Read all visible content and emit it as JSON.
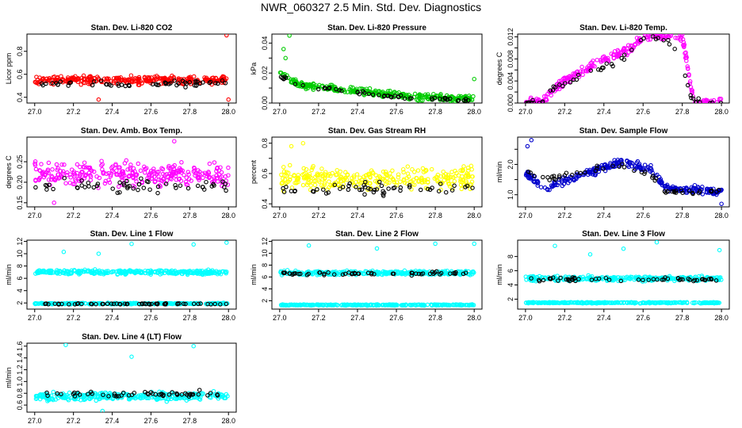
{
  "title": "NWR_060327  2.5 Min. Std. Dev. Diagnostics",
  "colors": {
    "red": "#ff0000",
    "green": "#00cc00",
    "magenta": "#ff00ff",
    "yellow": "#ffff00",
    "blue": "#0000cc",
    "cyan": "#00ffff",
    "black": "#000000"
  },
  "chart_data": [
    {
      "type": "scatter",
      "title": "Stan. Dev. Li-820 CO2",
      "ylabel": "Licor ppm",
      "xlim": [
        27.0,
        28.0
      ],
      "ylim": [
        0.35,
        0.95
      ],
      "xticks": [
        "27.0",
        "27.2",
        "27.4",
        "27.6",
        "27.8",
        "28.0"
      ],
      "yticks": [
        0.4,
        0.6,
        0.8
      ],
      "ytick_labels": [
        "0.4",
        "0.6",
        "0.8"
      ],
      "series": [
        {
          "name": "all",
          "color": "red",
          "level": 0.55,
          "spread": 0.05,
          "x_range": [
            27.0,
            28.0
          ]
        },
        {
          "name": "selected",
          "color": "black",
          "level": 0.52,
          "spread": 0.04,
          "x_range": [
            27.0,
            28.0
          ]
        }
      ],
      "outliers": [
        {
          "x": 27.99,
          "y": 0.94
        },
        {
          "x": 28.0,
          "y": 0.38
        },
        {
          "x": 27.33,
          "y": 0.38
        }
      ]
    },
    {
      "type": "scatter",
      "title": "Stan. Dev. Li-820 Pressure",
      "ylabel": "kPa",
      "xlim": [
        27.0,
        28.0
      ],
      "ylim": [
        0.0,
        0.046
      ],
      "xticks": [
        "27.0",
        "27.2",
        "27.4",
        "27.6",
        "27.8",
        "28.0"
      ],
      "yticks": [
        0.0,
        0.01,
        0.02,
        0.03,
        0.04
      ],
      "ytick_labels": [
        "0.00",
        "",
        "0.02",
        "",
        "0.04"
      ],
      "series": [
        {
          "name": "all",
          "color": "green",
          "profile": [
            [
              27.0,
              0.02
            ],
            [
              27.1,
              0.012
            ],
            [
              27.4,
              0.008
            ],
            [
              27.7,
              0.004
            ],
            [
              28.0,
              0.003
            ]
          ],
          "spread": 0.003,
          "x_range": [
            27.0,
            28.0
          ]
        },
        {
          "name": "selected",
          "color": "black",
          "profile": [
            [
              27.0,
              0.018
            ],
            [
              27.1,
              0.011
            ],
            [
              27.4,
              0.007
            ],
            [
              27.7,
              0.003
            ],
            [
              28.0,
              0.002
            ]
          ],
          "spread": 0.002,
          "x_range": [
            27.0,
            28.0
          ]
        }
      ],
      "outliers": [
        {
          "x": 27.05,
          "y": 0.045
        },
        {
          "x": 27.02,
          "y": 0.036
        },
        {
          "x": 27.03,
          "y": 0.03
        },
        {
          "x": 28.0,
          "y": 0.016
        }
      ]
    },
    {
      "type": "scatter",
      "title": "Stan. Dev. Li-820 Temp.",
      "ylabel": "degrees C",
      "xlim": [
        27.0,
        28.0
      ],
      "ylim": [
        0.0,
        0.0125
      ],
      "xticks": [
        "27.0",
        "27.2",
        "27.4",
        "27.6",
        "27.8",
        "28.0"
      ],
      "yticks": [
        0.0,
        0.002,
        0.004,
        0.006,
        0.008,
        0.01,
        0.012
      ],
      "ytick_labels": [
        "0.000",
        "",
        "0.004",
        "",
        "0.008",
        "",
        "0.012"
      ],
      "series": [
        {
          "name": "all",
          "color": "magenta",
          "profile": [
            [
              27.0,
              0.0
            ],
            [
              27.09,
              0.0
            ],
            [
              27.1,
              0.001
            ],
            [
              27.2,
              0.004
            ],
            [
              27.4,
              0.008
            ],
            [
              27.55,
              0.01
            ],
            [
              27.6,
              0.0125
            ],
            [
              27.8,
              0.012
            ],
            [
              27.85,
              0.002
            ],
            [
              27.87,
              0.0
            ],
            [
              28.0,
              0.0
            ]
          ],
          "spread": 0.0012,
          "x_range": [
            27.0,
            28.0
          ]
        },
        {
          "name": "selected",
          "color": "black",
          "profile": [
            [
              27.0,
              0.0
            ],
            [
              27.09,
              0.0
            ],
            [
              27.15,
              0.003
            ],
            [
              27.3,
              0.005
            ],
            [
              27.5,
              0.008
            ],
            [
              27.6,
              0.012
            ],
            [
              27.75,
              0.011
            ],
            [
              27.85,
              0.001
            ],
            [
              27.87,
              0.0
            ],
            [
              28.0,
              0.0
            ]
          ],
          "spread": 0.001,
          "x_range": [
            27.0,
            28.0
          ]
        }
      ],
      "outliers": []
    },
    {
      "type": "scatter",
      "title": "Stan. Dev. Amb. Box Temp.",
      "ylabel": "degrees C",
      "xlim": [
        27.0,
        28.0
      ],
      "ylim": [
        0.14,
        0.31
      ],
      "xticks": [
        "27.0",
        "27.2",
        "27.4",
        "27.6",
        "27.8",
        "28.0"
      ],
      "yticks": [
        0.15,
        0.2,
        0.25
      ],
      "ytick_labels": [
        "0.15",
        "0.20",
        "0.25"
      ],
      "series": [
        {
          "name": "all",
          "color": "magenta",
          "level": 0.22,
          "spread": 0.04,
          "x_range": [
            27.0,
            28.0
          ]
        },
        {
          "name": "selected",
          "color": "black",
          "level": 0.19,
          "spread": 0.025,
          "x_range": [
            27.0,
            28.0
          ]
        }
      ],
      "outliers": [
        {
          "x": 27.72,
          "y": 0.3
        },
        {
          "x": 27.1,
          "y": 0.15
        }
      ]
    },
    {
      "type": "scatter",
      "title": "Stan. Dev. Gas Stream RH",
      "ylabel": "percent",
      "xlim": [
        27.0,
        28.0
      ],
      "ylim": [
        0.38,
        0.84
      ],
      "xticks": [
        "27.0",
        "27.2",
        "27.4",
        "27.6",
        "27.8",
        "28.0"
      ],
      "yticks": [
        0.4,
        0.5,
        0.6,
        0.7,
        0.8
      ],
      "ytick_labels": [
        "0.4",
        "",
        "0.6",
        "",
        "0.8"
      ],
      "series": [
        {
          "name": "all",
          "color": "yellow",
          "level": 0.57,
          "spread": 0.1,
          "x_range": [
            27.0,
            28.0
          ]
        },
        {
          "name": "selected",
          "color": "black",
          "level": 0.5,
          "spread": 0.06,
          "x_range": [
            27.0,
            28.0
          ]
        }
      ],
      "outliers": [
        {
          "x": 27.12,
          "y": 0.8
        },
        {
          "x": 27.06,
          "y": 0.78
        }
      ]
    },
    {
      "type": "scatter",
      "title": "Stan. Dev. Sample Flow",
      "ylabel": "ml/min",
      "xlim": [
        27.0,
        28.0
      ],
      "ylim": [
        0.6,
        2.9
      ],
      "xticks": [
        "27.0",
        "27.2",
        "27.4",
        "27.6",
        "27.8",
        "28.0"
      ],
      "yticks": [
        1.0,
        1.5,
        2.0,
        2.5
      ],
      "ytick_labels": [
        "1.0",
        "",
        "2.0",
        ""
      ],
      "series": [
        {
          "name": "all",
          "color": "blue",
          "profile": [
            [
              27.0,
              1.7
            ],
            [
              27.1,
              1.2
            ],
            [
              27.3,
              1.7
            ],
            [
              27.5,
              2.1
            ],
            [
              27.65,
              1.8
            ],
            [
              27.72,
              1.2
            ],
            [
              28.0,
              1.1
            ]
          ],
          "spread": 0.18,
          "x_range": [
            27.0,
            28.0
          ]
        },
        {
          "name": "selected",
          "color": "black",
          "profile": [
            [
              27.0,
              1.8
            ],
            [
              27.1,
              1.5
            ],
            [
              27.3,
              1.8
            ],
            [
              27.5,
              2.0
            ],
            [
              27.65,
              1.6
            ],
            [
              27.72,
              1.1
            ],
            [
              28.0,
              1.1
            ]
          ],
          "spread": 0.12,
          "x_range": [
            27.0,
            28.0
          ]
        }
      ],
      "outliers": [
        {
          "x": 27.03,
          "y": 2.8
        },
        {
          "x": 28.0,
          "y": 0.7
        },
        {
          "x": 27.01,
          "y": 2.6
        }
      ]
    },
    {
      "type": "scatter",
      "title": "Stan. Dev. Line 1 Flow",
      "ylabel": "ml/min",
      "xlim": [
        27.0,
        28.0
      ],
      "ylim": [
        1.0,
        12.2
      ],
      "xticks": [
        "27.0",
        "27.2",
        "27.4",
        "27.6",
        "27.8",
        "28.0"
      ],
      "yticks": [
        2,
        4,
        6,
        8,
        10,
        12
      ],
      "ytick_labels": [
        "2",
        "4",
        "6",
        "8",
        "10",
        "12"
      ],
      "series": [
        {
          "name": "all-upper",
          "color": "cyan",
          "level": 7.0,
          "spread": 0.5,
          "x_range": [
            27.0,
            28.0
          ]
        },
        {
          "name": "all-lower",
          "color": "cyan",
          "level": 1.9,
          "spread": 0.15,
          "x_range": [
            27.0,
            28.0
          ]
        },
        {
          "name": "selected",
          "color": "black",
          "level": 1.85,
          "spread": 0.12,
          "x_range": [
            27.0,
            28.0
          ]
        }
      ],
      "outliers": [
        {
          "x": 27.15,
          "y": 10.3
        },
        {
          "x": 27.33,
          "y": 10.0
        },
        {
          "x": 27.5,
          "y": 11.6
        },
        {
          "x": 27.99,
          "y": 11.8
        },
        {
          "x": 27.82,
          "y": 11.5
        }
      ]
    },
    {
      "type": "scatter",
      "title": "Stan. Dev. Line 2 Flow",
      "ylabel": "ml/min",
      "xlim": [
        27.0,
        28.0
      ],
      "ylim": [
        0.6,
        12.2
      ],
      "xticks": [
        "27.0",
        "27.2",
        "27.4",
        "27.6",
        "27.8",
        "28.0"
      ],
      "yticks": [
        2,
        4,
        6,
        8,
        10,
        12
      ],
      "ytick_labels": [
        "2",
        "4",
        "6",
        "8",
        "10",
        "12"
      ],
      "series": [
        {
          "name": "all-upper",
          "color": "cyan",
          "level": 6.7,
          "spread": 0.5,
          "x_range": [
            27.0,
            28.0
          ]
        },
        {
          "name": "all-lower",
          "color": "cyan",
          "level": 1.3,
          "spread": 0.12,
          "x_range": [
            27.0,
            28.0
          ]
        },
        {
          "name": "selected",
          "color": "black",
          "level": 6.6,
          "spread": 0.4,
          "x_range": [
            27.0,
            28.0
          ]
        }
      ],
      "outliers": [
        {
          "x": 27.15,
          "y": 11.3
        },
        {
          "x": 27.5,
          "y": 10.8
        },
        {
          "x": 28.0,
          "y": 11.6
        },
        {
          "x": 27.8,
          "y": 11.6
        }
      ]
    },
    {
      "type": "scatter",
      "title": "Stan. Dev. Line 3 Flow",
      "ylabel": "ml/min",
      "xlim": [
        27.0,
        28.0
      ],
      "ylim": [
        0.6,
        10.3
      ],
      "xticks": [
        "27.0",
        "27.2",
        "27.4",
        "27.6",
        "27.8",
        "28.0"
      ],
      "yticks": [
        2,
        4,
        6,
        8
      ],
      "ytick_labels": [
        "2",
        "4",
        "6",
        "8"
      ],
      "series": [
        {
          "name": "all-upper",
          "color": "cyan",
          "level": 4.9,
          "spread": 0.5,
          "x_range": [
            27.0,
            28.0
          ]
        },
        {
          "name": "all-lower",
          "color": "cyan",
          "level": 1.5,
          "spread": 0.12,
          "x_range": [
            27.0,
            28.0
          ]
        },
        {
          "name": "selected",
          "color": "black",
          "level": 4.8,
          "spread": 0.35,
          "x_range": [
            27.0,
            28.0
          ]
        }
      ],
      "outliers": [
        {
          "x": 27.33,
          "y": 8.3
        },
        {
          "x": 27.5,
          "y": 9.1
        },
        {
          "x": 27.67,
          "y": 10.0
        },
        {
          "x": 27.99,
          "y": 8.9
        },
        {
          "x": 27.15,
          "y": 9.5
        }
      ]
    },
    {
      "type": "scatter",
      "title": "Stan. Dev. Line 4 (LT) Flow",
      "ylabel": "ml/min",
      "xlim": [
        27.0,
        28.0
      ],
      "ylim": [
        0.48,
        1.65
      ],
      "xticks": [
        "27.0",
        "27.2",
        "27.4",
        "27.6",
        "27.8",
        "28.0"
      ],
      "yticks": [
        0.6,
        0.8,
        1.0,
        1.2,
        1.4,
        1.6
      ],
      "ytick_labels": [
        "0.6",
        "0.8",
        "1.0",
        "1.2",
        "1.4",
        "1.6"
      ],
      "series": [
        {
          "name": "all",
          "color": "cyan",
          "level": 0.75,
          "spread": 0.1,
          "x_range": [
            27.0,
            28.0
          ]
        },
        {
          "name": "selected",
          "color": "black",
          "level": 0.78,
          "spread": 0.08,
          "x_range": [
            27.0,
            28.0
          ]
        }
      ],
      "outliers": [
        {
          "x": 27.16,
          "y": 1.62
        },
        {
          "x": 27.5,
          "y": 1.42
        },
        {
          "x": 27.82,
          "y": 1.6
        },
        {
          "x": 27.35,
          "y": 0.5
        }
      ]
    }
  ]
}
